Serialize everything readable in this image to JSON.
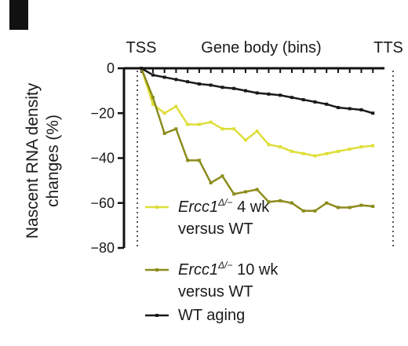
{
  "panel_label": "",
  "chart_data": {
    "type": "line",
    "ylabel_line1": "Nascent RNA density",
    "ylabel_line2": "changes (%)",
    "top_labels": {
      "left": "TSS",
      "center": "Gene body (bins)",
      "right": "TTS"
    },
    "ylim": [
      -80,
      0
    ],
    "yticks": [
      0,
      -20,
      -40,
      -60,
      -80
    ],
    "ytick_labels": [
      "0",
      "−20",
      "−40",
      "−60",
      "−80"
    ],
    "x": [
      0,
      1,
      2,
      3,
      4,
      5,
      6,
      7,
      8,
      9,
      10,
      11,
      12,
      13,
      14,
      15,
      16,
      17,
      18,
      19,
      20
    ],
    "xlim": [
      -1.5,
      21.0
    ],
    "grid": false,
    "legend_position": "bottom-center",
    "series": [
      {
        "name": "Ercc1Δ/− 4 wk versus WT",
        "legend": {
          "italic": "Ercc1",
          "sup": "Δ/−",
          "rest": " 4 wk",
          "line2": "versus WT"
        },
        "color": "#dede3a",
        "values": [
          0,
          -16,
          -20,
          -17,
          -25,
          -25,
          -24,
          -27,
          -27,
          -32,
          -28,
          -34,
          -35,
          -37,
          -38,
          -39,
          -38,
          -37,
          -36,
          -35,
          -34.5
        ]
      },
      {
        "name": "Ercc1Δ/− 10 wk versus WT",
        "legend": {
          "italic": "Ercc1",
          "sup": "Δ/−",
          "rest": " 10 wk",
          "line2": "versus WT"
        },
        "color": "#8c8c1c",
        "values": [
          0,
          -13,
          -29,
          -27,
          -41,
          -41,
          -51,
          -48,
          -56,
          -55,
          -54,
          -59.5,
          -59,
          -60,
          -63.5,
          -63.5,
          -60,
          -62,
          -62,
          -61,
          -61.5
        ]
      },
      {
        "name": "WT aging",
        "legend": {
          "italic": "",
          "sup": "",
          "rest": "WT aging",
          "line2": ""
        },
        "color": "#1a1a1a",
        "values": [
          0,
          -3,
          -4,
          -5,
          -6,
          -7,
          -7.5,
          -8.5,
          -9,
          -10,
          -11,
          -11.5,
          -12,
          -13,
          -14,
          -15,
          -16,
          -17.5,
          -18,
          -18.5,
          -20
        ]
      }
    ]
  }
}
